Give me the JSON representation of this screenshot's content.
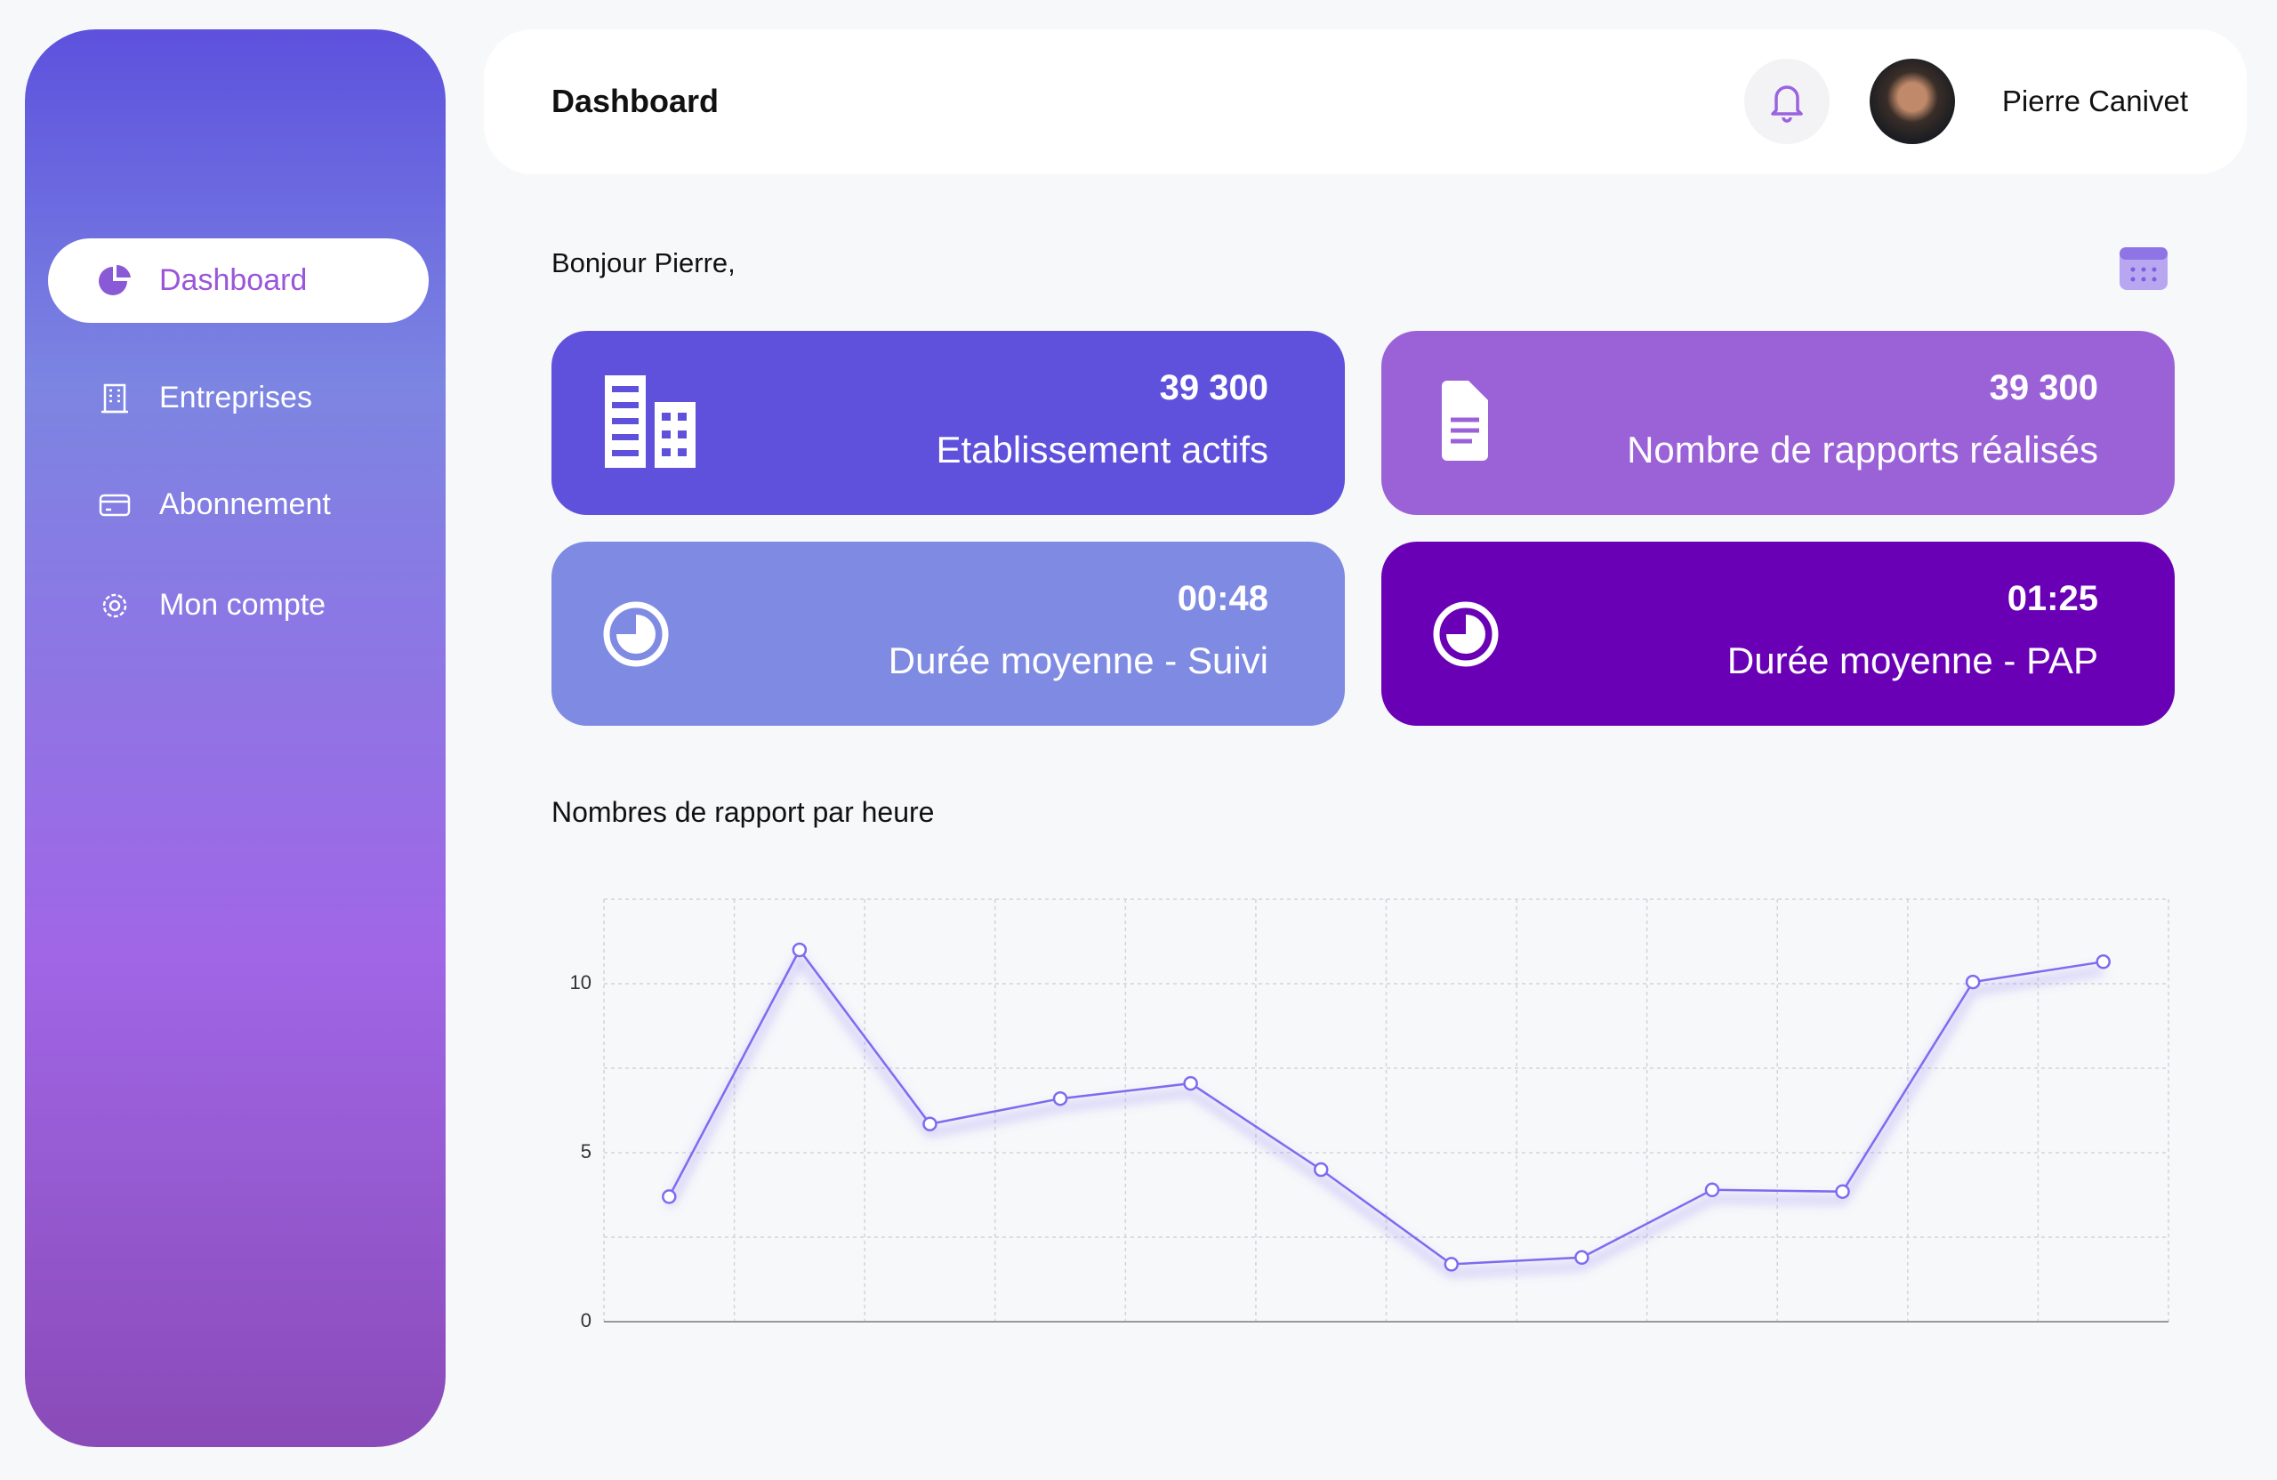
{
  "sidebar": {
    "nav": [
      {
        "label": "Dashboard",
        "active": true
      },
      {
        "label": "Entreprises",
        "active": false
      },
      {
        "label": "Abonnement",
        "active": false
      },
      {
        "label": "Mon compte",
        "active": false
      }
    ]
  },
  "header": {
    "title": "Dashboard",
    "user_name": "Pierre Canivet"
  },
  "greeting": "Bonjour Pierre,",
  "cards": [
    {
      "value": "39 300",
      "label": "Etablissement actifs",
      "color": "#5f51dc"
    },
    {
      "value": "39 300",
      "label": "Nombre de rapports réalisés",
      "color": "#9b62d8"
    },
    {
      "value": "00:48",
      "label": "Durée moyenne - Suivi",
      "color": "#7f8be2"
    },
    {
      "value": "01:25",
      "label": "Durée moyenne - PAP",
      "color": "#6a00b5"
    }
  ],
  "chart_data": {
    "type": "line",
    "title": "Nombres de rapport par heure",
    "categories": [
      null,
      null,
      null,
      null,
      null,
      null,
      null,
      null,
      null,
      null,
      null,
      null
    ],
    "values": [
      3.7,
      11.0,
      5.85,
      6.6,
      7.05,
      4.5,
      1.7,
      1.9,
      3.9,
      3.85,
      10.05,
      10.65
    ],
    "color": "#7b6cf0",
    "ylim": [
      0,
      12.5
    ],
    "yticks": [
      0,
      5,
      10
    ],
    "minor_yticks": [
      2.5,
      7.5,
      12.5
    ],
    "grid": true
  }
}
